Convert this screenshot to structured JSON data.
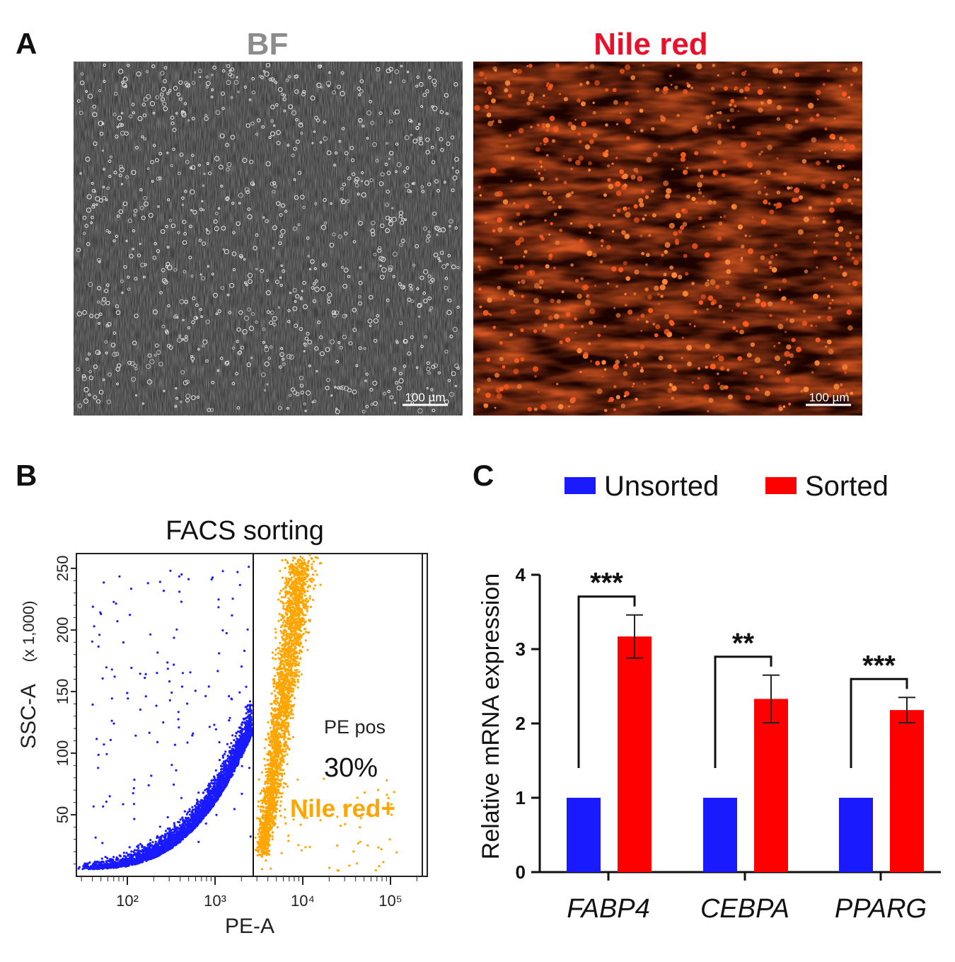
{
  "panels": {
    "a": {
      "label": "A",
      "bf_title": "BF",
      "nile_title": "Nile red",
      "bf_scale": "100 µm",
      "nile_scale": "100 µm",
      "bf_color": "#8c8c8c",
      "nile_color": "#e8102a"
    },
    "b": {
      "label": "B",
      "title": "FACS sorting",
      "x_label": "PE-A",
      "y_label": "SSC-A",
      "y_multiplier": "(x 1,000)",
      "y_ticks": [
        "50",
        "100",
        "150",
        "200",
        "250"
      ],
      "x_ticks": [
        "10²",
        "10³",
        "10⁴",
        "10⁵"
      ],
      "gate_name": "PE pos",
      "gate_percent": "30%",
      "gate_population": "Nile red+",
      "neg_color": "#1a1aff",
      "pos_color": "#ffa500"
    },
    "c": {
      "label": "C"
    }
  },
  "chart_data": {
    "type": "bar",
    "ylabel": "Relative mRNA expression",
    "ylim": [
      0,
      4
    ],
    "y_ticks": [
      0,
      1,
      2,
      3,
      4
    ],
    "categories": [
      "FABP4",
      "CEBPA",
      "PPARG"
    ],
    "series": [
      {
        "name": "Unsorted",
        "color": "#1a1aff",
        "values": [
          1,
          1,
          1
        ],
        "errors": [
          0,
          0,
          0
        ]
      },
      {
        "name": "Sorted",
        "color": "#ff0000",
        "values": [
          3.17,
          2.33,
          2.18
        ],
        "errors": [
          0.29,
          0.32,
          0.17
        ]
      }
    ],
    "significance": [
      "***",
      "**",
      "***"
    ],
    "legend_position": "top"
  }
}
